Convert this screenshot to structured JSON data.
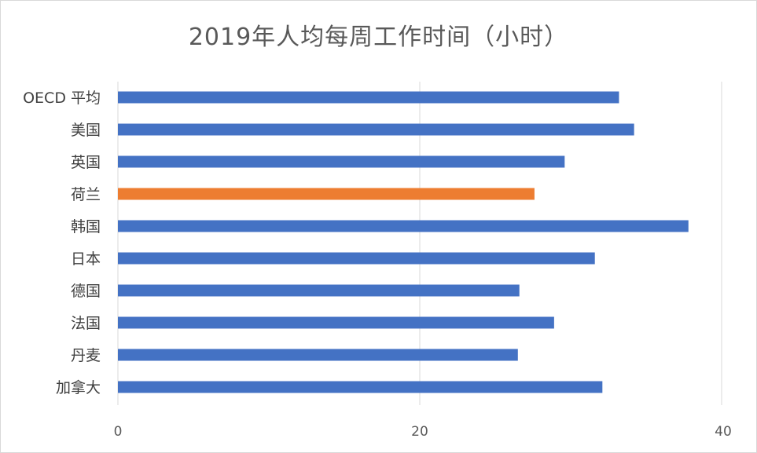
{
  "chart_data": {
    "type": "bar",
    "orientation": "horizontal",
    "title": "2019年人均每周工作时间（小时）",
    "categories": [
      "OECD 平均",
      "美国",
      "英国",
      "荷兰",
      "韩国",
      "日本",
      "德国",
      "法国",
      "丹麦",
      "加拿大"
    ],
    "values": [
      33.2,
      34.2,
      29.6,
      27.6,
      37.8,
      31.6,
      26.6,
      28.9,
      26.5,
      32.1
    ],
    "highlight_category": "荷兰",
    "colors": {
      "default": "#4472c4",
      "highlight": "#ed7d31",
      "gridline": "#d9d9d9",
      "label": "#404040",
      "tick": "#595959"
    },
    "xlim": [
      0,
      40
    ],
    "xticks": [
      0,
      20,
      40
    ],
    "xlabel": "",
    "ylabel": "",
    "grid": true,
    "legend": "none"
  }
}
